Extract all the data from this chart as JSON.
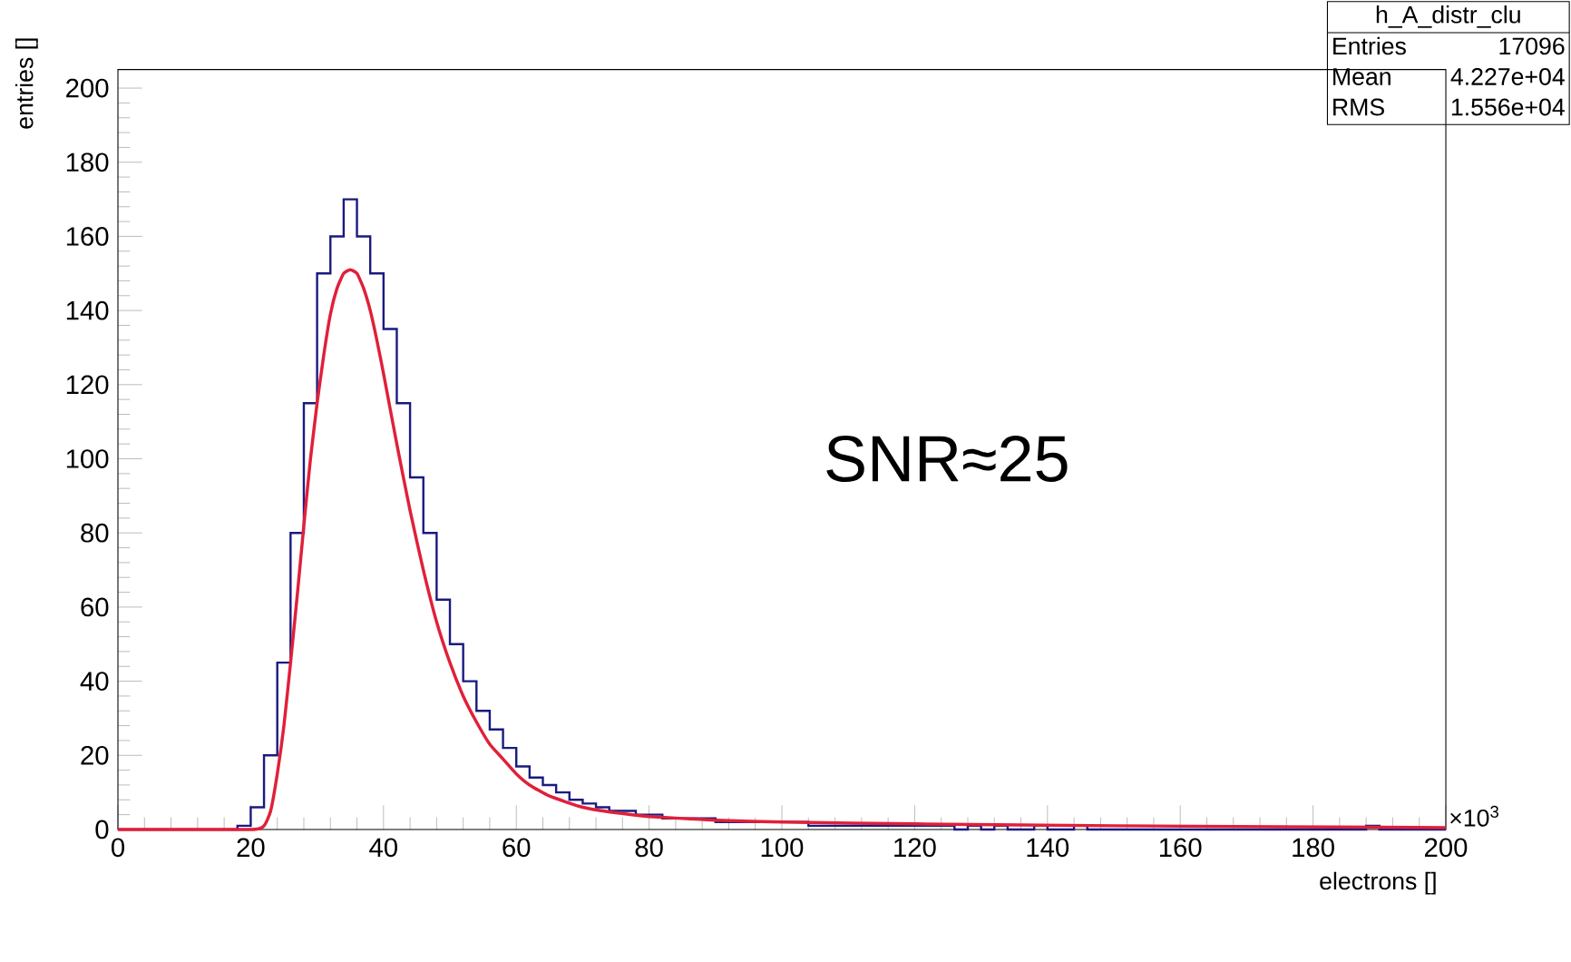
{
  "chart_data": {
    "type": "histogram",
    "xlabel": "electrons   []",
    "ylabel": "entries   []",
    "bins": [
      0,
      2,
      4,
      6,
      8,
      10,
      12,
      14,
      16,
      18,
      20,
      22,
      24,
      26,
      28,
      30,
      32,
      34,
      36,
      38,
      40,
      42,
      44,
      46,
      48,
      50,
      52,
      54,
      56,
      58,
      60,
      62,
      64,
      66,
      68,
      70,
      72,
      74,
      76,
      78,
      80,
      82,
      84,
      86,
      88,
      90,
      92,
      94,
      96,
      98,
      100,
      102,
      104,
      106,
      108,
      110,
      112,
      114,
      116,
      118,
      120,
      122,
      124,
      126,
      128,
      130,
      132,
      134,
      136,
      138,
      140,
      142,
      144,
      146,
      148,
      150,
      152,
      154,
      156,
      158,
      160,
      162,
      164,
      166,
      168,
      170,
      172,
      174,
      176,
      178,
      180,
      182,
      184,
      186,
      188,
      190,
      192,
      194,
      196,
      198,
      200
    ],
    "values": [
      0,
      0,
      0,
      0,
      0,
      0,
      0,
      0,
      0,
      1,
      6,
      20,
      45,
      80,
      115,
      150,
      160,
      170,
      160,
      150,
      135,
      115,
      95,
      80,
      62,
      50,
      40,
      32,
      27,
      22,
      17,
      14,
      12,
      10,
      8,
      7,
      6,
      5,
      5,
      4,
      4,
      3,
      3,
      3,
      3,
      2,
      2,
      2,
      2,
      2,
      2,
      2,
      1,
      1,
      1,
      1,
      1,
      1,
      1,
      1,
      1,
      1,
      1,
      0,
      1,
      0,
      1,
      0,
      0,
      1,
      0,
      0,
      1,
      0,
      0,
      0,
      0,
      0,
      0,
      0,
      0,
      0,
      0,
      0,
      0,
      0,
      0,
      0,
      0,
      0,
      0,
      0,
      0,
      0,
      1,
      0,
      0,
      0,
      0,
      0
    ],
    "color": "#1a1a80",
    "series": [
      {
        "type": "line",
        "color": "#e0203a",
        "x": [
          0,
          20,
          22,
          23,
          24,
          25,
          26,
          27,
          28,
          29,
          30,
          31,
          32,
          33,
          34,
          35,
          36,
          37,
          38,
          39,
          40,
          42,
          44,
          46,
          48,
          50,
          52,
          54,
          56,
          58,
          60,
          62,
          65,
          70,
          75,
          80,
          90,
          100,
          120,
          150,
          200
        ],
        "values": [
          0,
          0,
          1,
          5,
          15,
          28,
          45,
          63,
          82,
          100,
          115,
          128,
          139,
          146,
          150,
          151,
          150,
          146,
          140,
          132,
          123,
          104,
          86,
          70,
          56,
          45,
          36,
          29,
          23,
          19,
          15,
          12,
          9,
          6,
          4.5,
          3.5,
          2.5,
          2,
          1.5,
          1,
          0.5
        ]
      }
    ],
    "xlim": [
      0,
      200
    ],
    "ylim": [
      0,
      205
    ],
    "xticks": [
      0,
      20,
      40,
      60,
      80,
      100,
      120,
      140,
      160,
      180,
      200
    ],
    "yticks": [
      0,
      20,
      40,
      60,
      80,
      100,
      120,
      140,
      160,
      180,
      200
    ],
    "annotations": [
      "SNR≈25",
      "h_A_distr_clu",
      "Entries",
      "17096",
      "Mean",
      "4.227e+04",
      "RMS",
      "1.556e+04",
      "×10$^{3}$"
    ]
  }
}
